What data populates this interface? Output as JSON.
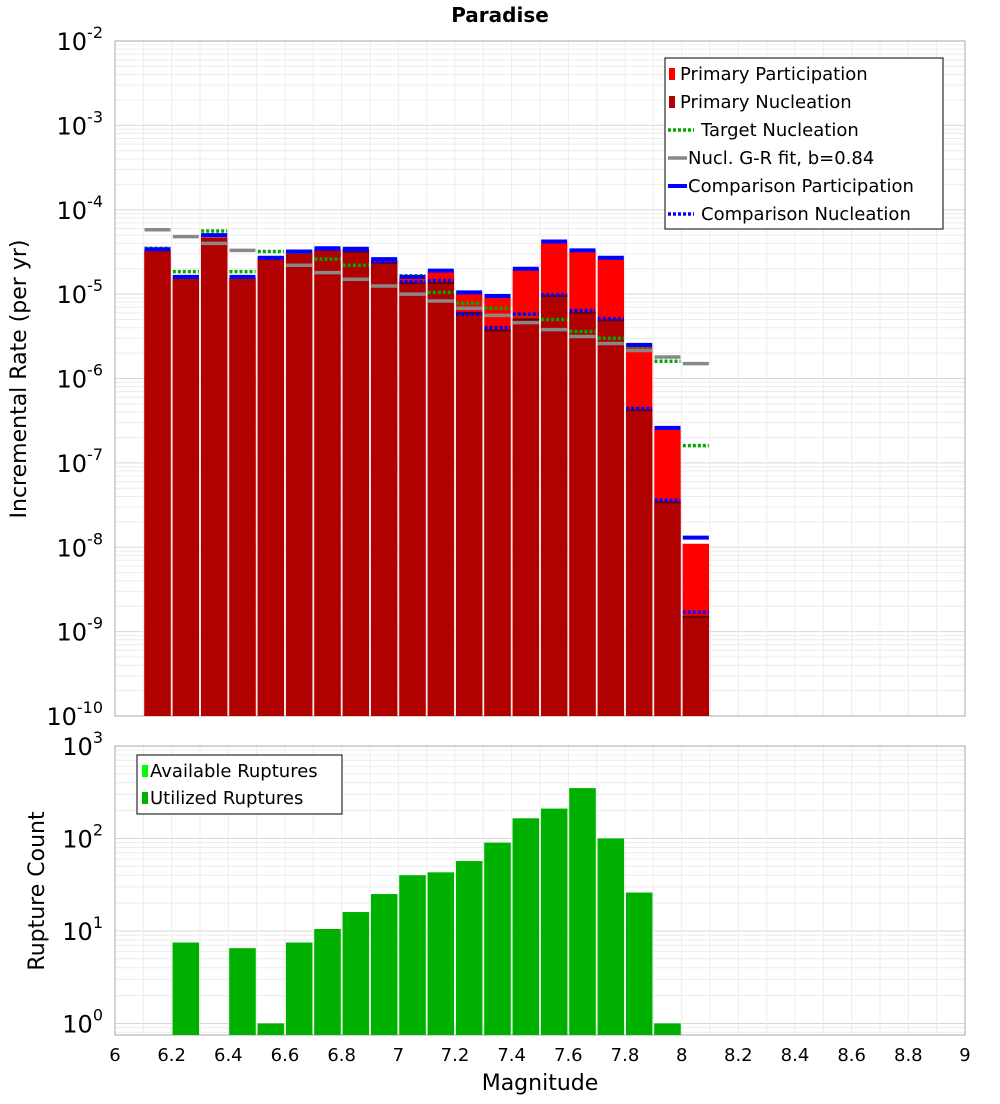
{
  "chart_data": [
    {
      "type": "bar",
      "title": "Paradise",
      "xlabel": "",
      "ylabel": "Incremental Rate (per yr)",
      "log_y": true,
      "xlim": [
        6,
        9
      ],
      "ylim": [
        1e-10,
        0.01
      ],
      "grid": true,
      "legend_position": "top-right",
      "y_ticks": [
        {
          "base": "10",
          "exp": "-10"
        },
        {
          "base": "10",
          "exp": "-9"
        },
        {
          "base": "10",
          "exp": "-8"
        },
        {
          "base": "10",
          "exp": "-7"
        },
        {
          "base": "10",
          "exp": "-6"
        },
        {
          "base": "10",
          "exp": "-5"
        },
        {
          "base": "10",
          "exp": "-4"
        },
        {
          "base": "10",
          "exp": "-3"
        },
        {
          "base": "10",
          "exp": "-2"
        }
      ],
      "x": [
        6.15,
        6.25,
        6.35,
        6.45,
        6.55,
        6.65,
        6.75,
        6.85,
        6.95,
        7.05,
        7.15,
        7.25,
        7.35,
        7.45,
        7.55,
        7.65,
        7.75,
        7.85,
        7.95,
        8.05
      ],
      "series": [
        {
          "name": "Primary Participation",
          "style": "bar",
          "color": "#ff0000",
          "values": [
            3.3e-05,
            1.55e-05,
            4.7e-05,
            1.55e-05,
            2.6e-05,
            3.1e-05,
            3.4e-05,
            3.35e-05,
            2.5e-05,
            1.55e-05,
            1.85e-05,
            1e-05,
            9e-06,
            1.95e-05,
            4e-05,
            3.2e-05,
            2.6e-05,
            2.4e-06,
            2.5e-07,
            1.1e-08
          ]
        },
        {
          "name": "Primary Nucleation",
          "style": "bar",
          "color": "#b00000",
          "values": [
            3.3e-05,
            1.55e-05,
            4.7e-05,
            1.55e-05,
            2.6e-05,
            3.1e-05,
            3.3e-05,
            3.2e-05,
            2.35e-05,
            1.35e-05,
            1.35e-05,
            6e-06,
            3.7e-06,
            5e-06,
            9.5e-06,
            6e-06,
            4.9e-06,
            4.2e-07,
            3.4e-08,
            1.5e-09
          ]
        },
        {
          "name": "Target Nucleation",
          "style": "dotted",
          "color": "#00aa00",
          "values": [
            3.5e-05,
            1.85e-05,
            5.6e-05,
            1.85e-05,
            3.2e-05,
            3.15e-05,
            2.6e-05,
            2.2e-05,
            2.55e-05,
            1.65e-05,
            1.05e-05,
            7.8e-06,
            6.8e-06,
            5.7e-06,
            5e-06,
            3.6e-06,
            3e-06,
            2.4e-06,
            1.6e-06,
            1.6e-07
          ]
        },
        {
          "name": "Nucl. G-R fit, b=0.84",
          "style": "solid",
          "color": "#888888",
          "values": [
            5.8e-05,
            4.8e-05,
            4e-05,
            3.3e-05,
            2.7e-05,
            2.2e-05,
            1.8e-05,
            1.5e-05,
            1.25e-05,
            1e-05,
            8.3e-06,
            6.8e-06,
            5.6e-06,
            4.6e-06,
            3.8e-06,
            3.15e-06,
            2.6e-06,
            2.15e-06,
            1.8e-06,
            1.5e-06
          ]
        },
        {
          "name": "Comparison Participation",
          "style": "solid",
          "color": "#0000ff",
          "values": [
            3.4e-05,
            1.6e-05,
            5e-05,
            1.6e-05,
            2.7e-05,
            3.2e-05,
            3.5e-05,
            3.45e-05,
            2.6e-05,
            1.6e-05,
            1.9e-05,
            1.05e-05,
            9.5e-06,
            2e-05,
            4.2e-05,
            3.3e-05,
            2.7e-05,
            2.5e-06,
            2.6e-07,
            1.3e-08
          ]
        },
        {
          "name": "Comparison Nucleation",
          "style": "dotted",
          "color": "#0000ff",
          "values": [
            3.4e-05,
            1.6e-05,
            5e-05,
            1.6e-05,
            2.7e-05,
            3.2e-05,
            3.4e-05,
            3.3e-05,
            2.4e-05,
            1.4e-05,
            1.45e-05,
            5.8e-06,
            4e-06,
            5.8e-06,
            9.8e-06,
            6.4e-06,
            5.1e-06,
            4.4e-07,
            3.6e-08,
            1.7e-09
          ]
        }
      ]
    },
    {
      "type": "bar",
      "title": "",
      "xlabel": "Magnitude",
      "ylabel": "Rupture Count",
      "log_y": true,
      "xlim": [
        6,
        9
      ],
      "ylim": [
        0.75,
        1000
      ],
      "grid": true,
      "legend_position": "top-left",
      "x_ticks": [
        "6",
        "6.2",
        "6.4",
        "6.6",
        "6.8",
        "7",
        "7.2",
        "7.4",
        "7.6",
        "7.8",
        "8",
        "8.2",
        "8.4",
        "8.6",
        "8.8",
        "9"
      ],
      "y_ticks": [
        {
          "base": "10",
          "exp": "0"
        },
        {
          "base": "10",
          "exp": "1"
        },
        {
          "base": "10",
          "exp": "2"
        },
        {
          "base": "10",
          "exp": "3"
        }
      ],
      "x": [
        6.15,
        6.25,
        6.35,
        6.45,
        6.55,
        6.65,
        6.75,
        6.85,
        6.95,
        7.05,
        7.15,
        7.25,
        7.35,
        7.45,
        7.55,
        7.65,
        7.75,
        7.85,
        7.95,
        8.05
      ],
      "series": [
        {
          "name": "Available Ruptures",
          "style": "bar",
          "color": "#00ff00",
          "values": [
            0,
            7.5,
            0,
            6.5,
            1,
            7.5,
            10.5,
            16,
            25,
            40,
            43,
            57,
            90,
            165,
            210,
            350,
            100,
            26,
            1,
            0
          ]
        },
        {
          "name": "Utilized Ruptures",
          "style": "bar",
          "color": "#00b000",
          "values": [
            0,
            7.5,
            0,
            6.5,
            1,
            7.5,
            10.5,
            16,
            25,
            40,
            43,
            57,
            90,
            165,
            210,
            350,
            100,
            26,
            1,
            0
          ]
        }
      ]
    }
  ]
}
